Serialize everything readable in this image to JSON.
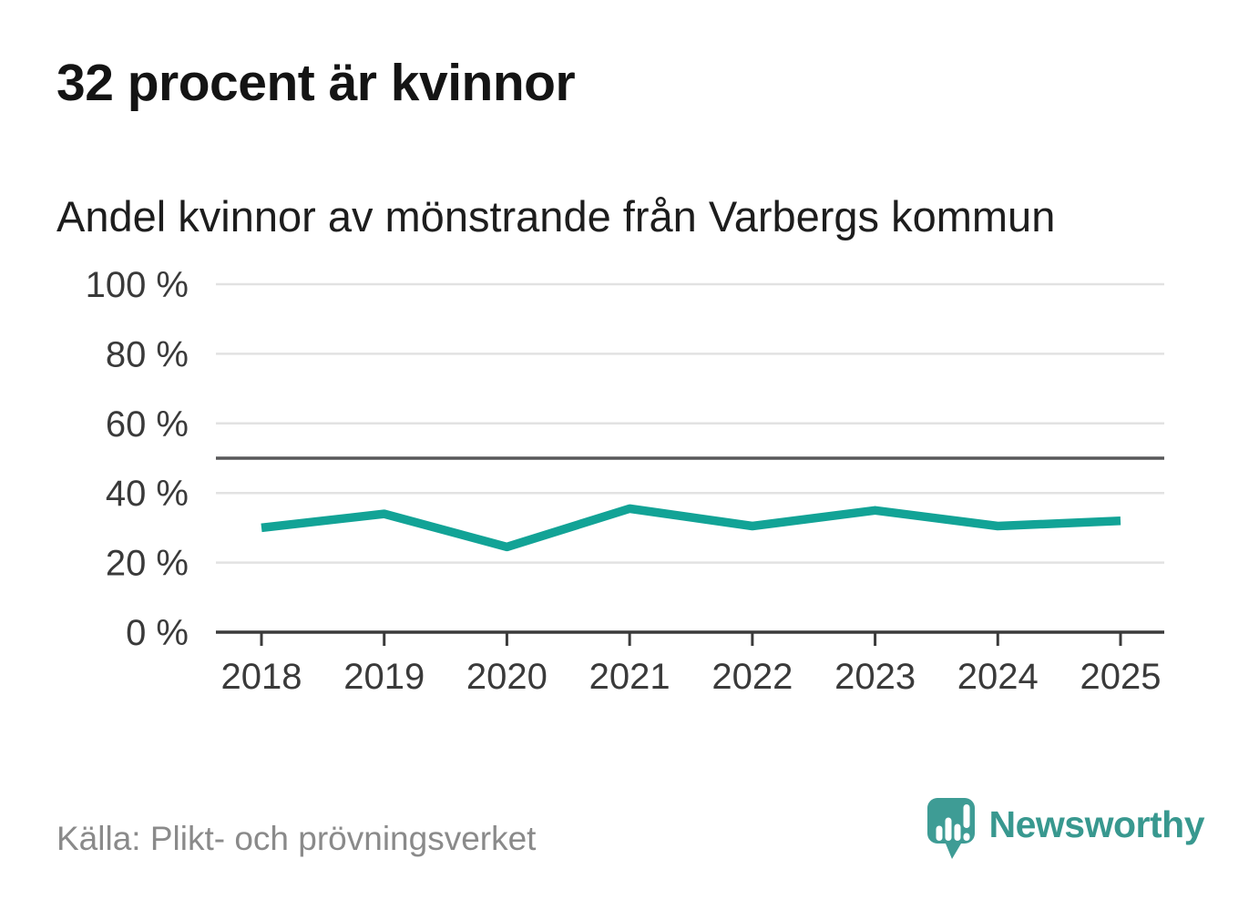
{
  "header": {
    "title": "32 procent är kvinnor",
    "subtitle": "Andel kvinnor av mönstrande från Varbergs kommun"
  },
  "chart_data": {
    "type": "line",
    "title": "Andel kvinnor av mönstrande från Varbergs kommun",
    "x": [
      "2018",
      "2019",
      "2020",
      "2021",
      "2022",
      "2023",
      "2024",
      "2025"
    ],
    "series": [
      {
        "name": "Andel kvinnor av mönstrande",
        "values": [
          30,
          34,
          24.5,
          35.5,
          30.5,
          35,
          30.5,
          32
        ],
        "color": "#12a396"
      }
    ],
    "xlabel": "",
    "ylabel": "",
    "ylim": [
      0,
      100
    ],
    "yticks": [
      0,
      20,
      40,
      60,
      80,
      100
    ],
    "ytick_suffix": " %",
    "reference_line": {
      "value": 50,
      "color": "#58585a"
    },
    "grid": true,
    "legend_position": "none",
    "colors": {
      "grid": "#e2e2e2",
      "axis": "#3b3b3b",
      "tick_label": "#3a3a3a"
    }
  },
  "footer": {
    "source": "Källa: Plikt- och prövningsverket",
    "logo_text": "Newsworthy",
    "logo_color": "#3e9c95",
    "logo_text_color": "#38988f"
  }
}
